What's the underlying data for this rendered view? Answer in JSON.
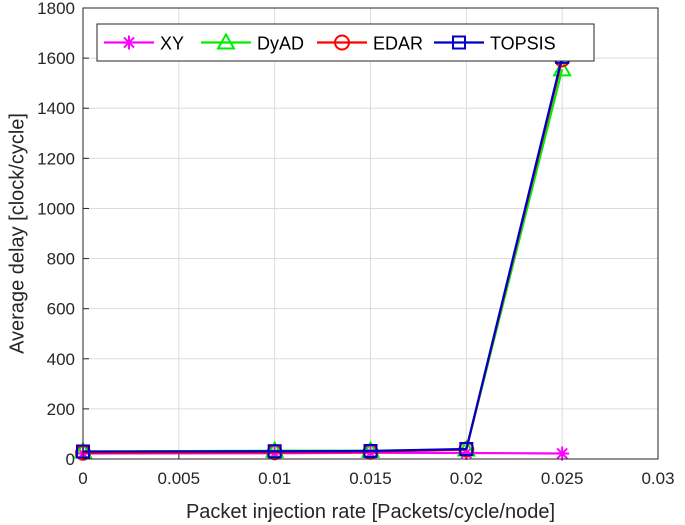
{
  "chart_data": {
    "type": "line",
    "title": "",
    "xlabel": "Packet injection rate [Packets/cycle/node]",
    "ylabel": "Average delay [clock/cycle]",
    "xlim": [
      0,
      0.03
    ],
    "ylim": [
      0,
      1800
    ],
    "x_ticks": [
      0,
      0.005,
      0.01,
      0.015,
      0.02,
      0.025,
      0.03
    ],
    "x_tick_labels": [
      "0",
      "0.005",
      "0.01",
      "0.015",
      "0.02",
      "0.025",
      "0.03"
    ],
    "y_ticks": [
      0,
      200,
      400,
      600,
      800,
      1000,
      1200,
      1400,
      1600,
      1800
    ],
    "y_tick_labels": [
      "0",
      "200",
      "400",
      "600",
      "800",
      "1000",
      "1200",
      "1400",
      "1600",
      "1800"
    ],
    "grid": true,
    "legend_position": "top (horizontal)",
    "x": [
      0,
      0.01,
      0.015,
      0.02,
      0.025
    ],
    "series": [
      {
        "name": "XY",
        "color": "#ff00ff",
        "marker": "asterisk",
        "values": [
          22,
          23,
          25,
          24,
          22
        ]
      },
      {
        "name": "DyAD",
        "color": "#00ee00",
        "marker": "triangle",
        "values": [
          30,
          33,
          33,
          38,
          1555
        ]
      },
      {
        "name": "EDAR",
        "color": "#ff0000",
        "marker": "circle",
        "values": [
          25,
          27,
          29,
          38,
          1595
        ]
      },
      {
        "name": "TOPSIS",
        "color": "#0000cc",
        "marker": "square",
        "values": [
          30,
          31,
          32,
          40,
          1605
        ]
      }
    ]
  }
}
